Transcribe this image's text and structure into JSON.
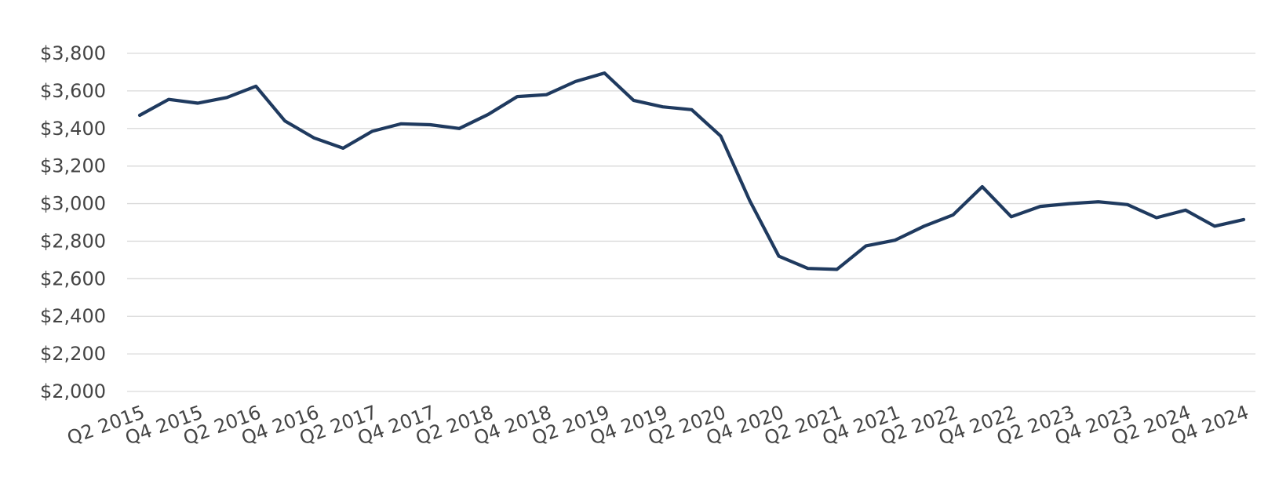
{
  "chart_data": {
    "type": "line",
    "title": "",
    "xlabel": "",
    "ylabel": "",
    "ylim": [
      2000,
      3800
    ],
    "y_ticks": [
      2000,
      2200,
      2400,
      2600,
      2800,
      3000,
      3200,
      3400,
      3600,
      3800
    ],
    "y_tick_labels": [
      "$2,000",
      "$2,200",
      "$2,400",
      "$2,600",
      "$2,800",
      "$3,000",
      "$3,200",
      "$3,400",
      "$3,600",
      "$3,800"
    ],
    "grid": true,
    "legend": "none",
    "line_color": "#1f3a5f",
    "gridline_color": "#d9d9d9",
    "x": [
      "Q2 2015",
      "Q3 2015",
      "Q4 2015",
      "Q1 2016",
      "Q2 2016",
      "Q3 2016",
      "Q4 2016",
      "Q1 2017",
      "Q2 2017",
      "Q3 2017",
      "Q4 2017",
      "Q1 2018",
      "Q2 2018",
      "Q3 2018",
      "Q4 2018",
      "Q1 2019",
      "Q2 2019",
      "Q3 2019",
      "Q4 2019",
      "Q1 2020",
      "Q2 2020",
      "Q3 2020",
      "Q4 2020",
      "Q1 2021",
      "Q2 2021",
      "Q3 2021",
      "Q4 2021",
      "Q1 2022",
      "Q2 2022",
      "Q3 2022",
      "Q4 2022",
      "Q1 2023",
      "Q2 2023",
      "Q3 2023",
      "Q4 2023",
      "Q1 2024",
      "Q2 2024",
      "Q3 2024",
      "Q4 2024"
    ],
    "x_tick_labels": [
      "Q2 2015",
      "Q4 2015",
      "Q2 2016",
      "Q4 2016",
      "Q2 2017",
      "Q4 2017",
      "Q2 2018",
      "Q4 2018",
      "Q2 2019",
      "Q4 2019",
      "Q2 2020",
      "Q4 2020",
      "Q2 2021",
      "Q4 2021",
      "Q2 2022",
      "Q4 2022",
      "Q2 2023",
      "Q4 2023",
      "Q2 2024",
      "Q4 2024"
    ],
    "series": [
      {
        "values": [
          3470,
          3555,
          3535,
          3565,
          3625,
          3440,
          3350,
          3295,
          3385,
          3425,
          3420,
          3400,
          3475,
          3570,
          3580,
          3650,
          3695,
          3550,
          3515,
          3500,
          3360,
          3015,
          2720,
          2655,
          2650,
          2775,
          2805,
          2880,
          2940,
          3090,
          2930,
          2985,
          3000,
          3010,
          2995,
          2925,
          2965,
          2880,
          2915
        ]
      }
    ]
  }
}
